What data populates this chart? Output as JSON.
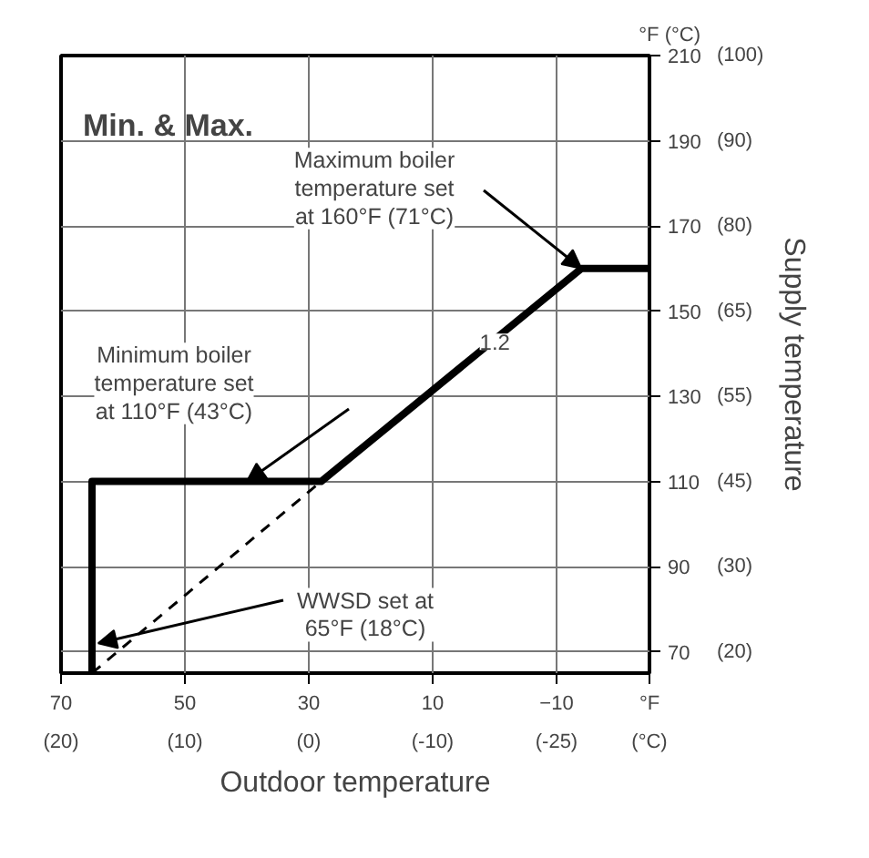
{
  "chart_data": {
    "type": "line",
    "title": "Min. & Max.",
    "xlabel": "Outdoor temperature",
    "ylabel": "Supply temperature",
    "xlim": [
      70,
      -25
    ],
    "ylim": [
      65,
      210
    ],
    "xticks": [
      70,
      50,
      30,
      10,
      -10
    ],
    "yticks": [
      70,
      90,
      110,
      130,
      150,
      170,
      190,
      210
    ],
    "grid": true,
    "series": [
      {
        "color": "#000000",
        "line_style": "solid",
        "x": [
          65,
          65,
          28,
          -14,
          -25
        ],
        "values": [
          65,
          110,
          110,
          160,
          160
        ]
      },
      {
        "color": "#000000",
        "line_style": "dashed",
        "x": [
          65,
          28
        ],
        "values": [
          65,
          110
        ]
      }
    ],
    "annotations": [
      {
        "text": "Maximum boiler\ntemperature set\nat 160°F (71°C)",
        "x": -14,
        "y": 160
      },
      {
        "text": "Minimum boiler\ntemperature set\nat 110°F (43°C)",
        "x": 40,
        "y": 110
      },
      {
        "text": "WWSD set at\n65°F (18°C)",
        "x": 64,
        "y": 72
      },
      {
        "text": "1.2",
        "x": 3,
        "y": 140
      },
      "°F (°C)",
      "°F",
      "(°C)",
      "(20)",
      "(10)",
      "(0)",
      "(-10)",
      "(-25)",
      "(20)",
      "(30)",
      "(45)",
      "(55)",
      "(65)",
      "(80)",
      "(90)",
      "(100)"
    ]
  }
}
